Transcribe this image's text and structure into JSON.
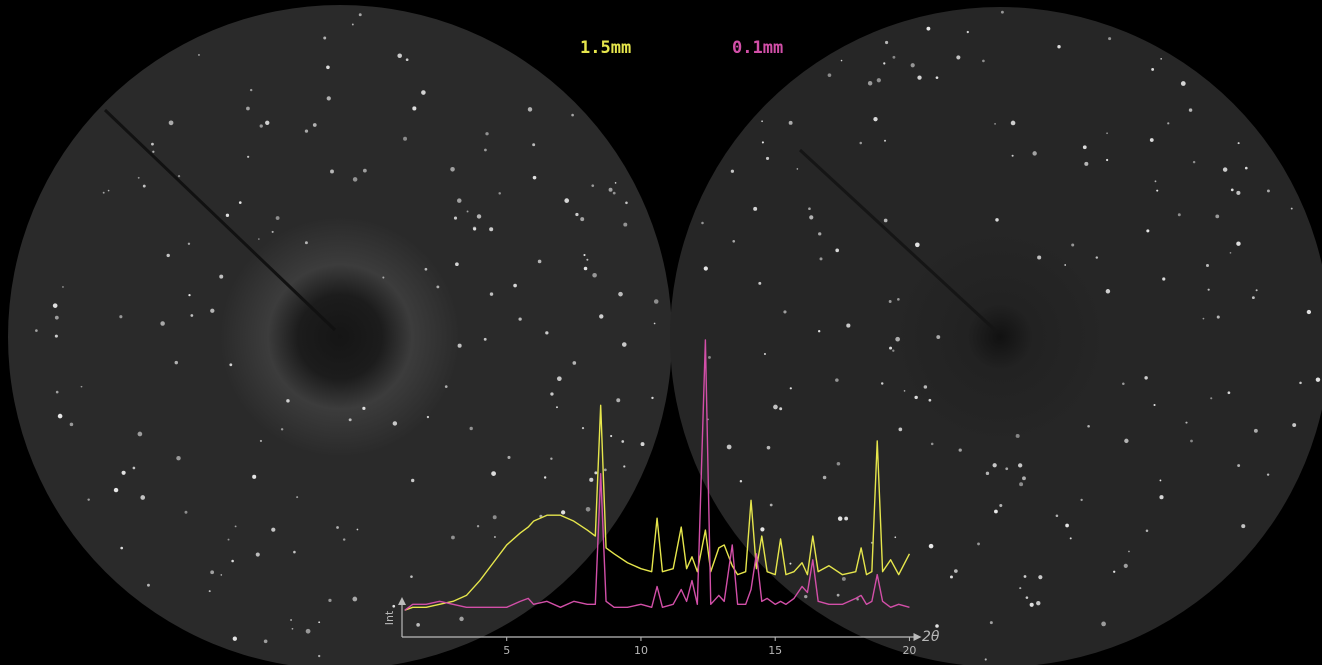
{
  "chart_data": {
    "type": "line",
    "x_label": "2θ",
    "y_label": "Int",
    "x": [
      1.2,
      1.5,
      2,
      2.5,
      3,
      3.5,
      4,
      4.5,
      5,
      5.5,
      5.8,
      6,
      6.5,
      7,
      7.5,
      8,
      8.3,
      8.5,
      8.7,
      9,
      9.5,
      10,
      10.4,
      10.6,
      10.8,
      11.2,
      11.5,
      11.7,
      11.9,
      12.1,
      12.4,
      12.6,
      12.9,
      13.1,
      13.4,
      13.6,
      13.9,
      14.1,
      14.3,
      14.5,
      14.7,
      15,
      15.2,
      15.4,
      15.7,
      16,
      16.2,
      16.4,
      16.6,
      17,
      17.5,
      18,
      18.2,
      18.4,
      18.6,
      18.8,
      19,
      19.3,
      19.6,
      20
    ],
    "series": [
      {
        "name": "1.5mm",
        "color": "#e6e64c",
        "values": [
          9,
          10,
          10,
          11,
          12,
          14,
          19,
          25,
          31,
          35,
          37,
          39,
          41,
          41,
          39,
          36,
          34,
          78,
          30,
          28,
          25,
          23,
          22,
          40,
          22,
          23,
          37,
          23,
          27,
          22,
          36,
          22,
          30,
          31,
          24,
          21,
          22,
          46,
          23,
          34,
          22,
          21,
          33,
          21,
          22,
          25,
          21,
          34,
          22,
          24,
          21,
          22,
          30,
          21,
          22,
          66,
          22,
          26,
          21,
          28
        ]
      },
      {
        "name": "0.1mm",
        "color": "#d24fa8",
        "values": [
          9,
          11,
          11,
          12,
          11,
          10,
          10,
          10,
          10,
          12,
          13,
          11,
          12,
          10,
          12,
          11,
          11,
          55,
          12,
          10,
          10,
          11,
          10,
          17,
          10,
          11,
          16,
          12,
          19,
          11,
          100,
          11,
          14,
          12,
          31,
          11,
          11,
          16,
          28,
          12,
          13,
          11,
          12,
          11,
          13,
          17,
          15,
          26,
          12,
          11,
          11,
          13,
          14,
          11,
          12,
          21,
          12,
          10,
          11,
          10
        ]
      }
    ],
    "xlim": [
      1.1,
      20.3
    ],
    "xticks": [
      5,
      10,
      15,
      20
    ],
    "ylim": [
      0,
      100
    ]
  }
}
